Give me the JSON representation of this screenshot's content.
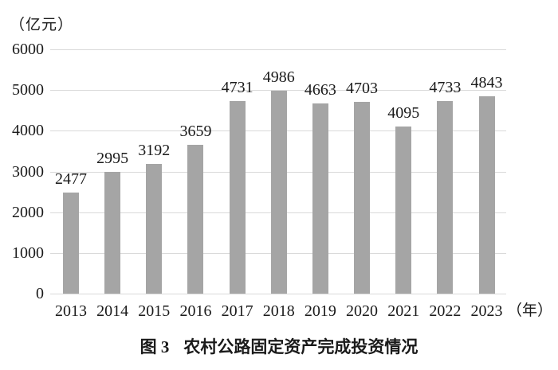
{
  "figure_caption": {
    "prefix": "图 3",
    "text": "农村公路固定资产完成投资情况"
  },
  "chart_data": {
    "type": "bar",
    "title": "图 3 农村公路固定资产完成投资情况",
    "unit_label": "（亿元）",
    "x_suffix": "（年）",
    "categories": [
      "2013",
      "2014",
      "2015",
      "2016",
      "2017",
      "2018",
      "2019",
      "2020",
      "2021",
      "2022",
      "2023"
    ],
    "values": [
      2477,
      2995,
      3192,
      3659,
      4731,
      4986,
      4663,
      4703,
      4095,
      4733,
      4843
    ],
    "y_ticks": [
      0,
      1000,
      2000,
      3000,
      4000,
      5000,
      6000
    ],
    "ylim": [
      0,
      6000
    ],
    "xlabel": "",
    "ylabel": "",
    "grid": true,
    "legend_position": "none",
    "bar_color": "#a5a5a5",
    "gridline_color": "#d9d9d9",
    "text_color": "#1a1a1a",
    "background_color": "#ffffff"
  }
}
